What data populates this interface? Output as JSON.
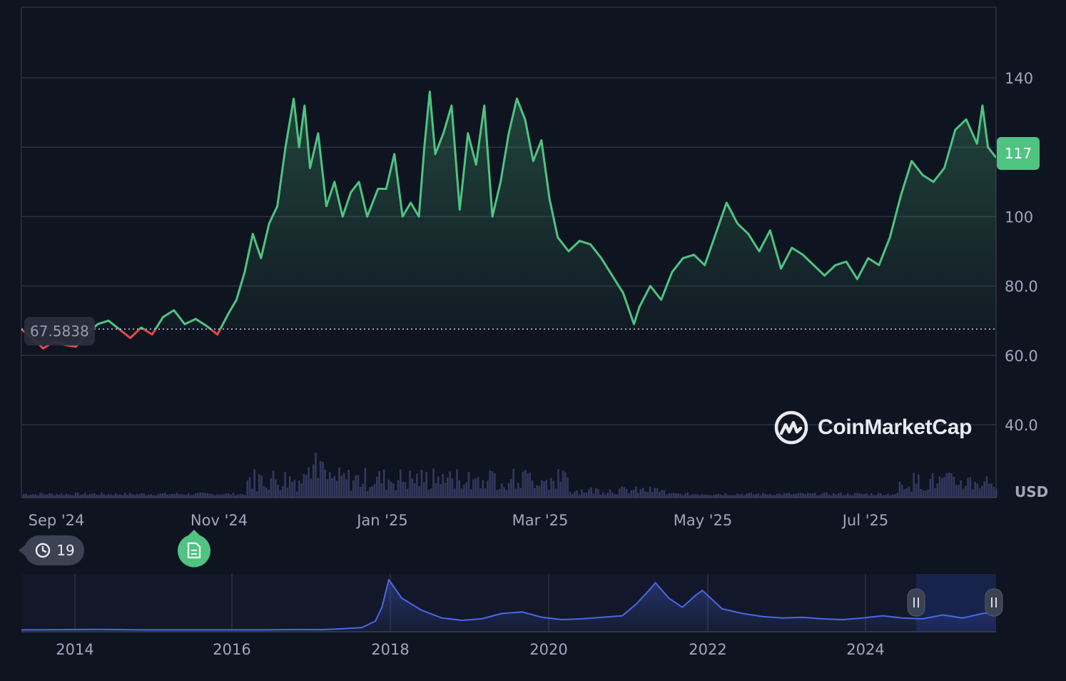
{
  "chart_data": [
    {
      "type": "line",
      "title": "",
      "xlabel": "",
      "ylabel": "",
      "currency": "USD",
      "x_ticks": [
        "Sep '24",
        "Nov '24",
        "Jan '25",
        "Mar '25",
        "May '25",
        "Jul '25"
      ],
      "y_ticks": [
        "40.0",
        "60.0",
        "80.0",
        "100",
        "140"
      ],
      "ylim": [
        25,
        158
      ],
      "grid": true,
      "baseline": 67.5838,
      "baseline_label": "67.5838",
      "current_price_label": "117",
      "series": [
        {
          "x": [
            "2024-08-25",
            "2024-08-29",
            "2024-09-02",
            "2024-09-06",
            "2024-09-10",
            "2024-09-14",
            "2024-09-18",
            "2024-09-22",
            "2024-09-26",
            "2024-09-30",
            "2024-10-04",
            "2024-10-08",
            "2024-10-12",
            "2024-10-16",
            "2024-10-20",
            "2024-10-24",
            "2024-10-28",
            "2024-11-01",
            "2024-11-05",
            "2024-11-09",
            "2024-11-12",
            "2024-11-15",
            "2024-11-18",
            "2024-11-21",
            "2024-11-24",
            "2024-11-27",
            "2024-11-30",
            "2024-12-03",
            "2024-12-05",
            "2024-12-07",
            "2024-12-09",
            "2024-12-12",
            "2024-12-15",
            "2024-12-18",
            "2024-12-21",
            "2024-12-24",
            "2024-12-27",
            "2024-12-30",
            "2025-01-03",
            "2025-01-06",
            "2025-01-09",
            "2025-01-12",
            "2025-01-15",
            "2025-01-18",
            "2025-01-20",
            "2025-01-22",
            "2025-01-24",
            "2025-01-27",
            "2025-01-30",
            "2025-02-02",
            "2025-02-05",
            "2025-02-08",
            "2025-02-11",
            "2025-02-14",
            "2025-02-17",
            "2025-02-20",
            "2025-02-23",
            "2025-02-26",
            "2025-03-01",
            "2025-03-04",
            "2025-03-07",
            "2025-03-10",
            "2025-03-14",
            "2025-03-18",
            "2025-03-22",
            "2025-03-26",
            "2025-03-30",
            "2025-04-03",
            "2025-04-07",
            "2025-04-09",
            "2025-04-13",
            "2025-04-17",
            "2025-04-21",
            "2025-04-25",
            "2025-04-29",
            "2025-05-03",
            "2025-05-07",
            "2025-05-11",
            "2025-05-15",
            "2025-05-19",
            "2025-05-23",
            "2025-05-27",
            "2025-05-31",
            "2025-06-04",
            "2025-06-08",
            "2025-06-12",
            "2025-06-16",
            "2025-06-20",
            "2025-06-24",
            "2025-06-28",
            "2025-07-02",
            "2025-07-06",
            "2025-07-10",
            "2025-07-14",
            "2025-07-18",
            "2025-07-22",
            "2025-07-26",
            "2025-07-30",
            "2025-08-03",
            "2025-08-07",
            "2025-08-11",
            "2025-08-13",
            "2025-08-15",
            "2025-08-18"
          ],
          "values": [
            67.5,
            65,
            62,
            64,
            63,
            62.5,
            66,
            69,
            70,
            67.5,
            65,
            68,
            66,
            71,
            73,
            69,
            70.5,
            68.5,
            66,
            72,
            76,
            84,
            95,
            88,
            98,
            103,
            120,
            134,
            120,
            132,
            114,
            124,
            103,
            110,
            100,
            107,
            110,
            100,
            108,
            108,
            118,
            100,
            104,
            100,
            120,
            136,
            118,
            124,
            132,
            102,
            124,
            115,
            132,
            100,
            110,
            124,
            134,
            128,
            116,
            122,
            105,
            94,
            90,
            93,
            92,
            88,
            83,
            78,
            69,
            74,
            80,
            76,
            84,
            88,
            89,
            86,
            95,
            104,
            98,
            95,
            90,
            96,
            85,
            91,
            89,
            86,
            83,
            86,
            87,
            82,
            88,
            86,
            94,
            106,
            116,
            112,
            110,
            114,
            125,
            128,
            121,
            132,
            120,
            117
          ]
        }
      ]
    },
    {
      "type": "area",
      "title": "",
      "x_ticks": [
        "2014",
        "2016",
        "2018",
        "2020",
        "2022",
        "2024"
      ],
      "series": [
        {
          "x": [
            "2013-06",
            "2013-12",
            "2014-06",
            "2014-12",
            "2015-06",
            "2015-12",
            "2016-06",
            "2016-12",
            "2017-03",
            "2017-06",
            "2017-09",
            "2017-11",
            "2017-12",
            "2018-01",
            "2018-03",
            "2018-06",
            "2018-09",
            "2018-12",
            "2019-03",
            "2019-06",
            "2019-09",
            "2019-12",
            "2020-03",
            "2020-06",
            "2020-09",
            "2020-12",
            "2021-02",
            "2021-04",
            "2021-05",
            "2021-07",
            "2021-09",
            "2021-11",
            "2021-12",
            "2022-03",
            "2022-06",
            "2022-09",
            "2022-12",
            "2023-03",
            "2023-06",
            "2023-09",
            "2023-12",
            "2024-03",
            "2024-06",
            "2024-09",
            "2024-12",
            "2025-03",
            "2025-06",
            "2025-08"
          ],
          "values": [
            3,
            4,
            6,
            3,
            3,
            3,
            3,
            5,
            4,
            10,
            18,
            60,
            150,
            330,
            210,
            130,
            80,
            65,
            75,
            110,
            120,
            85,
            70,
            75,
            85,
            95,
            170,
            260,
            310,
            210,
            150,
            230,
            260,
            140,
            110,
            90,
            80,
            85,
            75,
            70,
            80,
            95,
            80,
            75,
            100,
            80,
            110,
            117
          ]
        }
      ]
    }
  ],
  "ui": {
    "history_count": "19",
    "history_icon": "history-icon",
    "note_icon": "document-icon",
    "brand": "CoinMarketCap",
    "usd_label": "USD",
    "colors": {
      "up": "#4fc381",
      "down": "#e5484d",
      "background": "#0f1421",
      "grid": "#2b3140",
      "navigator": "#4a67e6",
      "navigator_window": "#1a2550"
    }
  }
}
